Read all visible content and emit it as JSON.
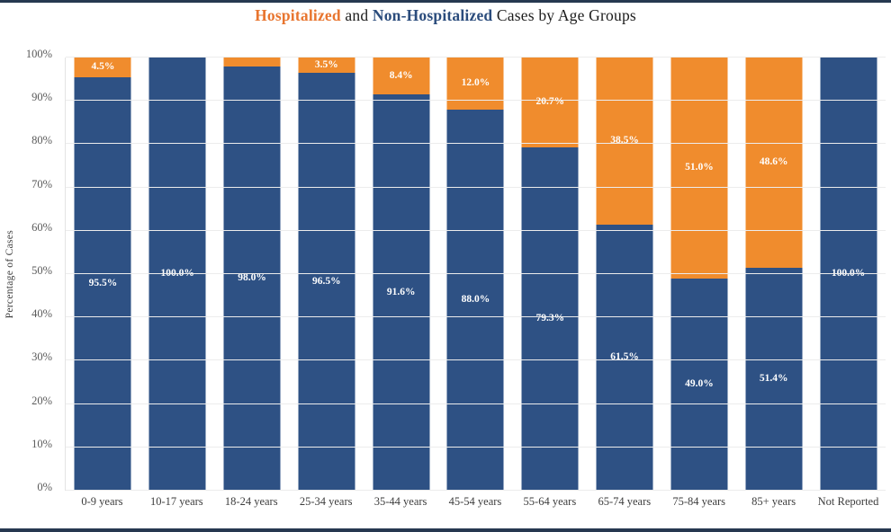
{
  "page": {
    "title": {
      "part_hospitalized": "Hospitalized",
      "part_and": " and ",
      "part_non_hospitalized": "Non-Hospitalized",
      "part_rest": " Cases by Age Groups"
    },
    "colors": {
      "bar_hospitalized": "#F08C2D",
      "bar_non_hospitalized": "#2E5184",
      "title_hospitalized": "#E8752F",
      "title_non_hospitalized": "#2B4C7C",
      "frame": "#263850",
      "gridline": "#ececec"
    }
  },
  "chart_data": {
    "type": "bar",
    "stacked": true,
    "orientation": "vertical",
    "title": "Hospitalized and Non-Hospitalized Cases by Age Groups",
    "ylabel": "Percentage of Cases",
    "ylim": [
      0,
      100
    ],
    "yticks": [
      "0%",
      "10%",
      "20%",
      "30%",
      "40%",
      "50%",
      "60%",
      "70%",
      "80%",
      "90%",
      "100%"
    ],
    "grid": true,
    "legend_position": "in-title",
    "categories": [
      "0-9 years",
      "10-17 years",
      "18-24 years",
      "25-34 years",
      "35-44 years",
      "45-54 years",
      "55-64 years",
      "65-74 years",
      "75-84 years",
      "85+ years",
      "Not Reported"
    ],
    "series": [
      {
        "name": "Non-Hospitalized",
        "color": "#2E5184",
        "values": [
          95.5,
          100.0,
          98.0,
          96.5,
          91.6,
          88.0,
          79.3,
          61.5,
          49.0,
          51.4,
          100.0
        ],
        "labels": [
          "95.5%",
          "100.0%",
          "98.0%",
          "96.5%",
          "91.6%",
          "88.0%",
          "79.3%",
          "61.5%",
          "49.0%",
          "51.4%",
          "100.0%"
        ]
      },
      {
        "name": "Hospitalized",
        "color": "#F08C2D",
        "values": [
          4.5,
          0.0,
          2.0,
          3.5,
          8.4,
          12.0,
          20.7,
          38.5,
          51.0,
          48.6,
          0.0
        ],
        "labels": [
          "4.5%",
          "",
          "",
          "3.5%",
          "8.4%",
          "12.0%",
          "20.7%",
          "38.5%",
          "51.0%",
          "48.6%",
          ""
        ]
      }
    ]
  }
}
